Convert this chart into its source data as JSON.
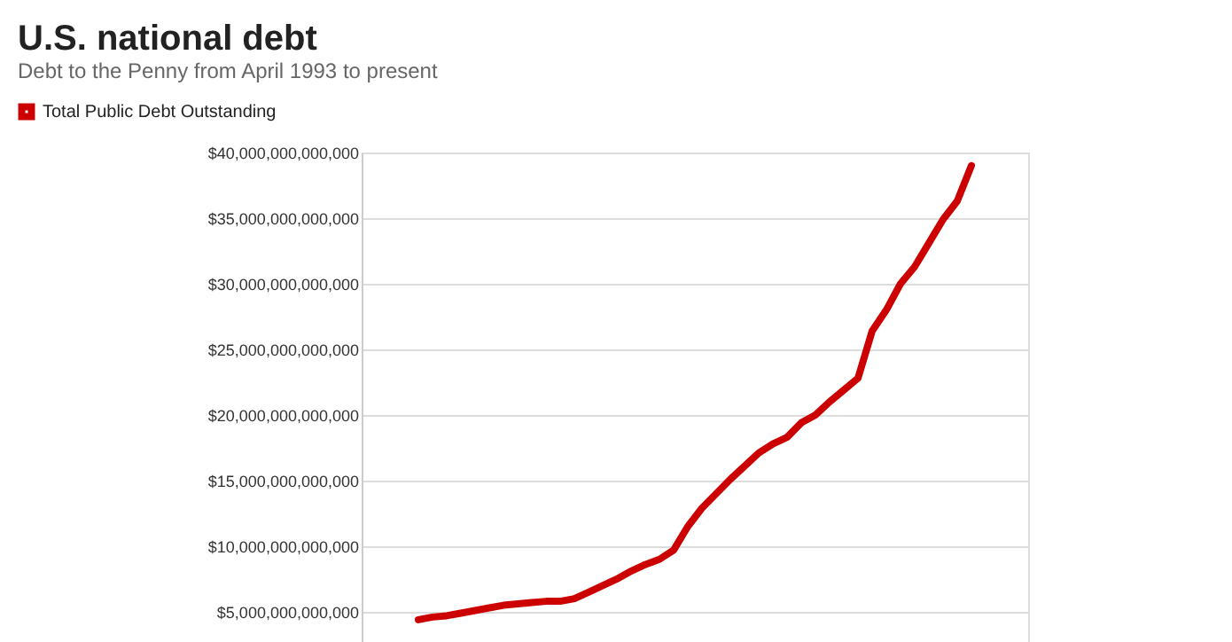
{
  "chart_data": {
    "type": "line",
    "title": "U.S. national debt",
    "subtitle": "Debt to the Penny from April 1993 to present",
    "categories": [
      null,
      null,
      null,
      null,
      null,
      null,
      null,
      null,
      null,
      null,
      null,
      null,
      null,
      null,
      null,
      null,
      null,
      null,
      null,
      null,
      null,
      null,
      null,
      null,
      null,
      null,
      null,
      null,
      null,
      null,
      null,
      null,
      null,
      null,
      null,
      null,
      null,
      null,
      null,
      null,
      null,
      null,
      null,
      null,
      null,
      null,
      null,
      null
    ],
    "series": [
      {
        "name": "Total Public Debt Outstanding",
        "color": "#cc0000",
        "values": [
          null,
          null,
          null,
          null,
          4400000000000,
          4600000000000,
          4700000000000,
          4900000000000,
          5100000000000,
          5300000000000,
          5500000000000,
          5600000000000,
          5700000000000,
          5800000000000,
          5800000000000,
          6000000000000,
          6500000000000,
          7000000000000,
          7500000000000,
          8100000000000,
          8600000000000,
          9000000000000,
          9700000000000,
          11500000000000,
          12900000000000,
          14000000000000,
          15100000000000,
          16100000000000,
          17100000000000,
          17800000000000,
          18300000000000,
          19400000000000,
          20000000000000,
          21000000000000,
          21900000000000,
          22800000000000,
          26400000000000,
          28000000000000,
          30000000000000,
          31300000000000,
          33100000000000,
          34900000000000,
          36300000000000,
          39000000000000,
          null,
          null,
          null,
          null
        ]
      }
    ],
    "ylim": [
      2700000000000,
      40000000000000
    ],
    "yticks": [
      {
        "value": 5000000000000,
        "label": "$5,000,000,000,000"
      },
      {
        "value": 10000000000000,
        "label": "$10,000,000,000,000"
      },
      {
        "value": 15000000000000,
        "label": "$15,000,000,000,000"
      },
      {
        "value": 20000000000000,
        "label": "$20,000,000,000,000"
      },
      {
        "value": 25000000000000,
        "label": "$25,000,000,000,000"
      },
      {
        "value": 30000000000000,
        "label": "$30,000,000,000,000"
      },
      {
        "value": 35000000000000,
        "label": "$35,000,000,000,000"
      },
      {
        "value": 40000000000000,
        "label": "$40,000,000,000,000"
      }
    ],
    "grid": "y",
    "legend": "top left",
    "tick_labels": "y",
    "marker": "none",
    "line_style": "solid"
  }
}
